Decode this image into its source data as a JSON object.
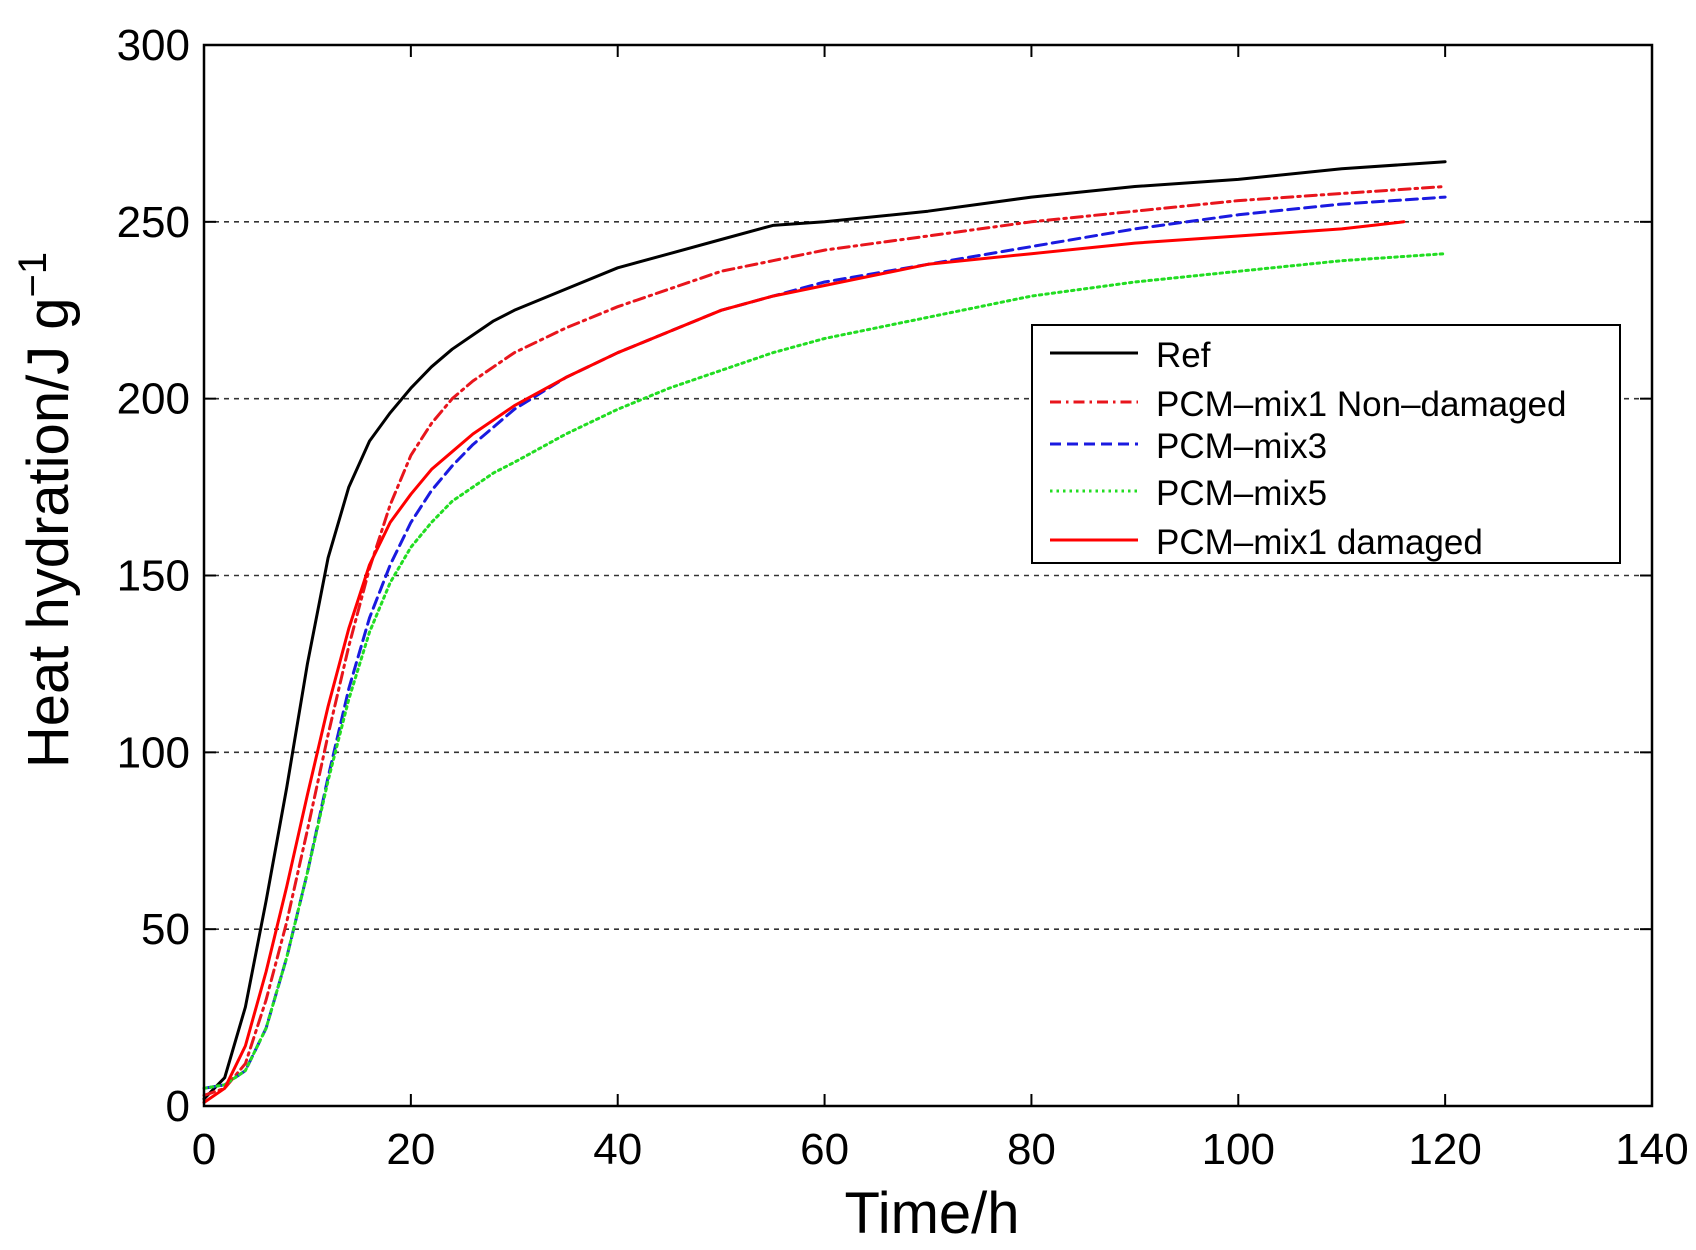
{
  "chart_data": {
    "type": "line",
    "title": "",
    "xlabel": "Time/h",
    "ylabel": "Heat hydration/J g",
    "ylabel_superscript": "−1",
    "xlim": [
      0,
      140
    ],
    "ylim": [
      0,
      300
    ],
    "xticks": [
      "0",
      "20",
      "40",
      "60",
      "80",
      "100",
      "120",
      "140"
    ],
    "yticks": [
      "0",
      "50",
      "100",
      "150",
      "200",
      "250",
      "300"
    ],
    "grid": "horizontal-dashed",
    "legend_position": "right",
    "series": [
      {
        "name": "Ref",
        "color": "#000000",
        "dash": "solid",
        "x": [
          0,
          2,
          4,
          6,
          8,
          10,
          12,
          14,
          16,
          18,
          20,
          22,
          24,
          26,
          28,
          30,
          35,
          40,
          45,
          50,
          55,
          60,
          70,
          80,
          90,
          100,
          110,
          120
        ],
        "y": [
          2,
          8,
          28,
          58,
          90,
          125,
          155,
          175,
          188,
          196,
          203,
          209,
          214,
          218,
          222,
          225,
          231,
          237,
          241,
          245,
          249,
          250,
          253,
          257,
          260,
          262,
          265,
          267
        ]
      },
      {
        "name": "PCM-mix1 Non-damaged",
        "color": "#e8151c",
        "dash": "dashdot",
        "x": [
          0,
          2,
          4,
          6,
          8,
          10,
          12,
          14,
          16,
          18,
          20,
          22,
          24,
          26,
          28,
          30,
          35,
          40,
          45,
          50,
          55,
          60,
          70,
          80,
          90,
          100,
          110,
          120
        ],
        "y": [
          3,
          5,
          12,
          30,
          52,
          78,
          105,
          130,
          152,
          170,
          184,
          193,
          200,
          205,
          209,
          213,
          220,
          226,
          231,
          236,
          239,
          242,
          246,
          250,
          253,
          256,
          258,
          260
        ]
      },
      {
        "name": "PCM-mix3",
        "color": "#1a1ae0",
        "dash": "dashed",
        "x": [
          0,
          2,
          4,
          6,
          8,
          10,
          12,
          14,
          16,
          18,
          20,
          22,
          24,
          26,
          28,
          30,
          35,
          40,
          45,
          50,
          55,
          60,
          70,
          80,
          90,
          100,
          110,
          120
        ],
        "y": [
          5,
          6,
          10,
          22,
          42,
          66,
          93,
          118,
          138,
          153,
          165,
          174,
          181,
          187,
          192,
          197,
          206,
          213,
          219,
          225,
          229,
          233,
          238,
          243,
          248,
          252,
          255,
          257
        ]
      },
      {
        "name": "PCM-mix5",
        "color": "#22dd22",
        "dash": "dotted",
        "x": [
          0,
          2,
          4,
          6,
          8,
          10,
          12,
          14,
          16,
          18,
          20,
          22,
          24,
          26,
          28,
          30,
          35,
          40,
          45,
          50,
          55,
          60,
          70,
          80,
          90,
          100,
          110,
          120
        ],
        "y": [
          5,
          6,
          10,
          22,
          42,
          66,
          92,
          115,
          134,
          148,
          158,
          165,
          171,
          175,
          179,
          182,
          190,
          197,
          203,
          208,
          213,
          217,
          223,
          229,
          233,
          236,
          239,
          241
        ]
      },
      {
        "name": "PCM-mix1 damaged",
        "color": "#ff0000",
        "dash": "solid",
        "x": [
          0,
          2,
          4,
          6,
          8,
          10,
          12,
          14,
          16,
          18,
          20,
          22,
          24,
          26,
          28,
          30,
          35,
          40,
          45,
          50,
          55,
          60,
          70,
          80,
          90,
          100,
          110,
          116
        ],
        "y": [
          1,
          5,
          17,
          38,
          62,
          88,
          113,
          135,
          153,
          165,
          173,
          180,
          185,
          190,
          194,
          198,
          206,
          213,
          219,
          225,
          229,
          232,
          238,
          241,
          244,
          246,
          248,
          250
        ]
      }
    ]
  }
}
